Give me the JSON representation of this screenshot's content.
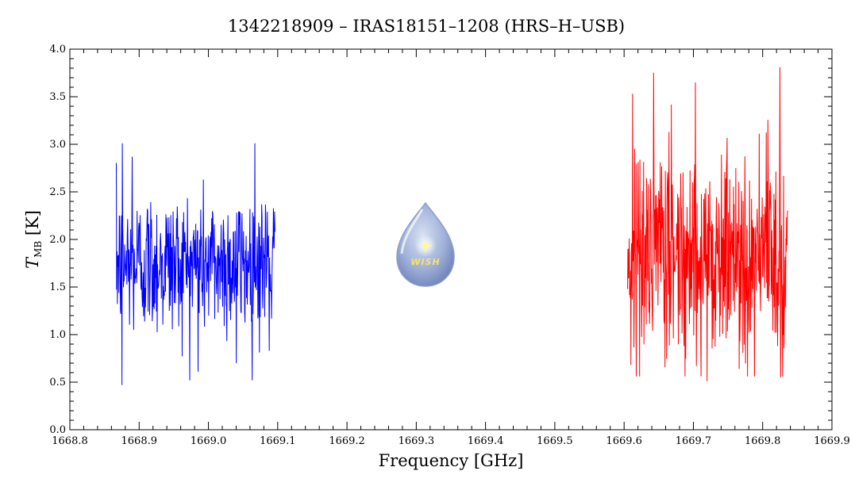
{
  "chart_data": {
    "type": "line",
    "title": "1342218909 – IRAS18151–1208 (HRS–H–USB)",
    "xlabel": "Frequency [GHz]",
    "ylabel": {
      "main": "T",
      "subscript": "MB",
      "unit": "[K]"
    },
    "xlim": [
      1668.8,
      1669.9
    ],
    "ylim": [
      0.0,
      4.0
    ],
    "xticks": [
      "1668.8",
      "1668.9",
      "1669.0",
      "1669.1",
      "1669.2",
      "1669.3",
      "1669.4",
      "1669.5",
      "1669.6",
      "1669.7",
      "1669.8",
      "1669.9"
    ],
    "yticks": [
      "0.0",
      "0.5",
      "1.0",
      "1.5",
      "2.0",
      "2.5",
      "3.0",
      "3.5",
      "4.0"
    ],
    "grid": false,
    "series": [
      {
        "color": "#0000ff",
        "x_range": [
          1668.867,
          1669.096
        ],
        "mean": 1.75,
        "noise_sd": 0.38,
        "approx_min": 0.47,
        "approx_max": 3.01,
        "n_points": 420,
        "highlights": [
          {
            "x": 1668.875,
            "y": 0.47
          },
          {
            "x": 1668.876,
            "y": 3.01
          },
          {
            "x": 1668.89,
            "y": 2.87
          },
          {
            "x": 1668.985,
            "y": 0.61
          },
          {
            "x": 1669.04,
            "y": 0.7
          },
          {
            "x": 1669.067,
            "y": 3.01
          },
          {
            "x": 1669.088,
            "y": 0.83
          }
        ]
      },
      {
        "color": "#ff0000",
        "x_range": [
          1669.605,
          1669.836
        ],
        "mean": 1.85,
        "noise_sd": 0.55,
        "approx_min": 0.51,
        "approx_max": 3.81,
        "n_points": 480,
        "highlights": [
          {
            "x": 1669.61,
            "y": 0.68
          },
          {
            "x": 1669.612,
            "y": 3.53
          },
          {
            "x": 1669.703,
            "y": 3.65
          },
          {
            "x": 1669.72,
            "y": 0.51
          },
          {
            "x": 1669.825,
            "y": 3.81
          },
          {
            "x": 1669.826,
            "y": 0.55
          }
        ]
      }
    ]
  },
  "logo": {
    "icon": "wish-droplet-icon",
    "text": "WISH"
  }
}
